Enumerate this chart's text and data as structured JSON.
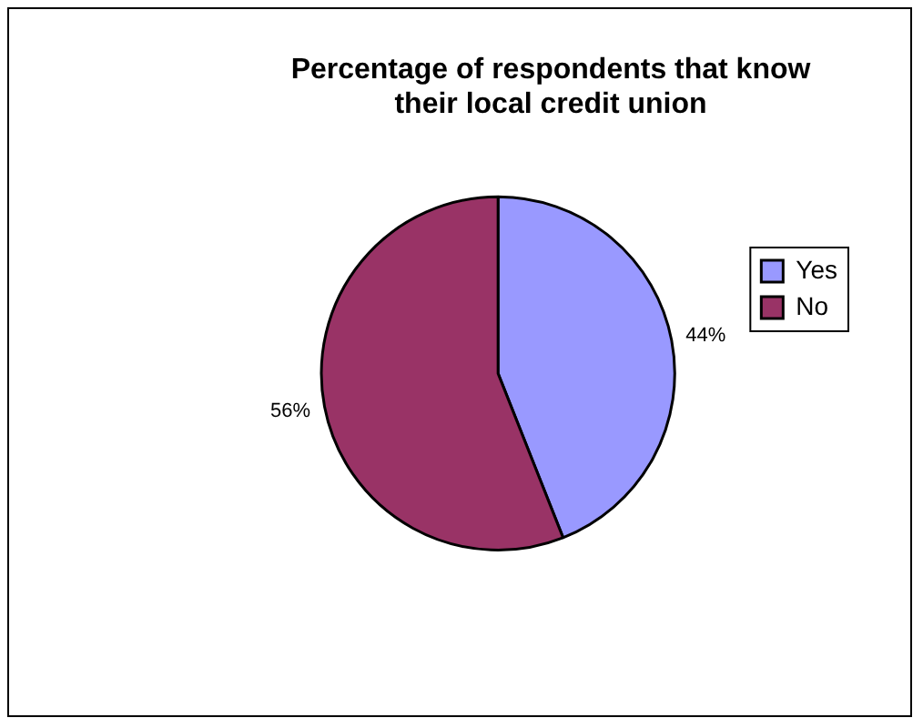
{
  "chart_data": {
    "type": "pie",
    "title": "Percentage of respondents that know their local credit union",
    "categories": [
      "Yes",
      "No"
    ],
    "values": [
      44,
      56
    ],
    "colors": [
      "#9999ff",
      "#993366"
    ],
    "value_labels": [
      "44%",
      "56%"
    ],
    "legend": "right"
  }
}
